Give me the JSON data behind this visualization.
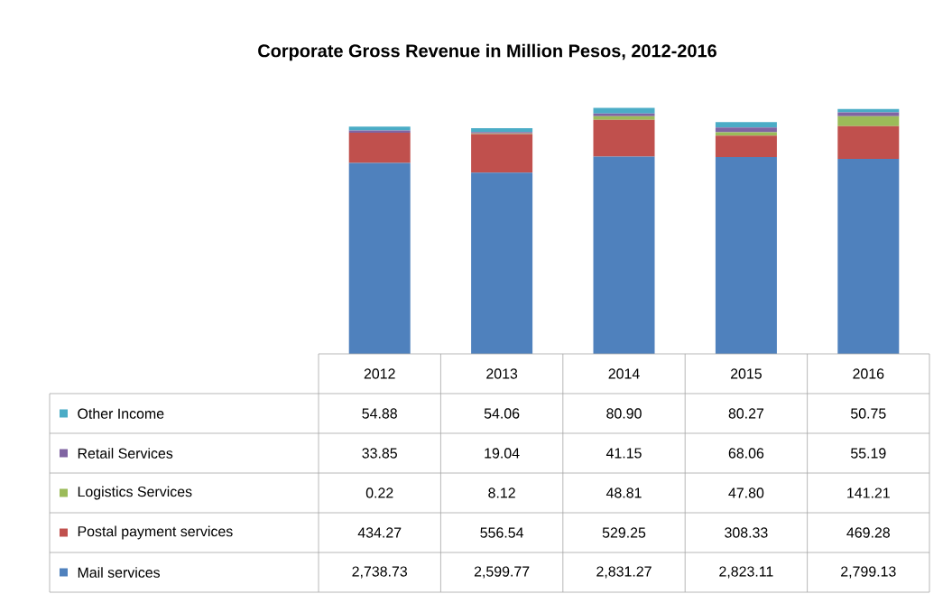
{
  "chart_data": {
    "type": "bar",
    "title": "Corporate Gross Revenue in Million Pesos, 2012-2016",
    "categories": [
      "2012",
      "2013",
      "2014",
      "2015",
      "2016"
    ],
    "stacked": true,
    "legend": "bottom",
    "series": [
      {
        "name": "Mail services",
        "color": "#4f81bd",
        "values": [
          2738.73,
          2599.77,
          2831.27,
          2823.11,
          2799.13
        ],
        "value_labels": [
          "2,738.73",
          "2,599.77",
          "2,831.27",
          "2,823.11",
          "2,799.13"
        ]
      },
      {
        "name": "Postal payment services",
        "color": "#c0504d",
        "values": [
          434.27,
          556.54,
          529.25,
          308.33,
          469.28
        ],
        "value_labels": [
          "434.27",
          "556.54",
          "529.25",
          "308.33",
          "469.28"
        ]
      },
      {
        "name": "Logistics Services",
        "color": "#9bbb59",
        "values": [
          0.22,
          8.12,
          48.81,
          47.8,
          141.21
        ],
        "value_labels": [
          "0.22",
          "8.12",
          "48.81",
          "47.80",
          "141.21"
        ]
      },
      {
        "name": "Retail Services",
        "color": "#8064a2",
        "values": [
          33.85,
          19.04,
          41.15,
          68.06,
          55.19
        ],
        "value_labels": [
          "33.85",
          "19.04",
          "41.15",
          "68.06",
          "55.19"
        ]
      },
      {
        "name": "Other Income",
        "color": "#4bacc6",
        "values": [
          54.88,
          54.06,
          80.9,
          80.27,
          50.75
        ],
        "value_labels": [
          "54.88",
          "54.06",
          "80.90",
          "80.27",
          "50.75"
        ]
      }
    ]
  }
}
